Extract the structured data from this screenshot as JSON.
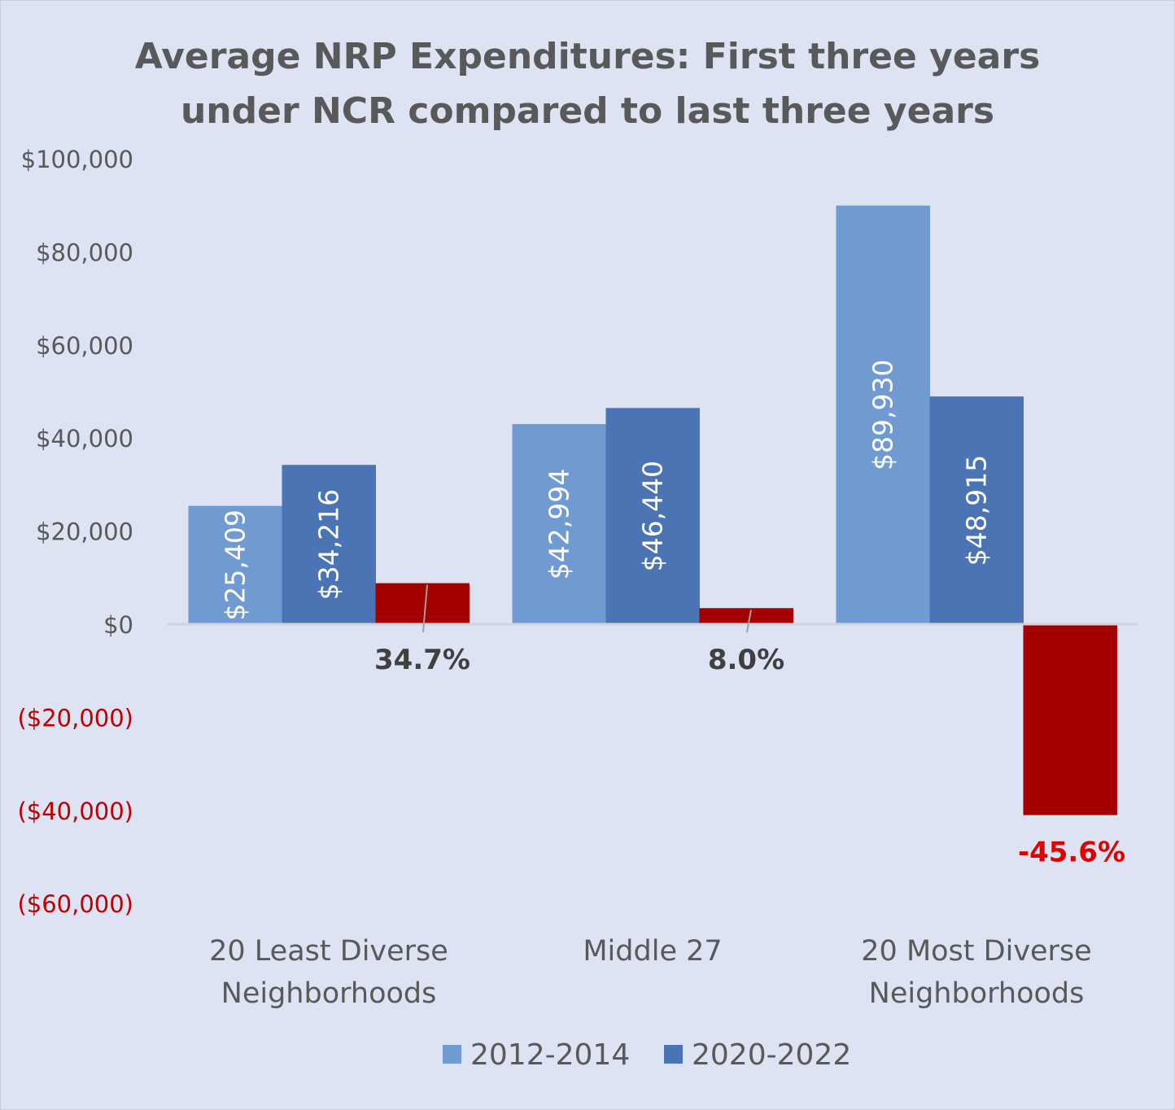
{
  "chart_data": {
    "type": "bar",
    "title": [
      "Average NRP Expenditures: First three years",
      "under NCR compared to last three years"
    ],
    "categories": [
      [
        "20 Least Diverse",
        "Neighborhoods"
      ],
      [
        "Middle 27"
      ],
      [
        "20 Most Diverse",
        "Neighborhoods"
      ]
    ],
    "series": [
      {
        "name": "2012-2014",
        "values": [
          25409,
          42994,
          89930
        ],
        "labels": [
          "$25,409",
          "$42,994",
          "$89,930"
        ],
        "color": "#709bd2"
      },
      {
        "name": "2020-2022",
        "values": [
          34216,
          46440,
          48915
        ],
        "labels": [
          "$34,216",
          "$46,440",
          "$48,915"
        ],
        "color": "#4a74b4"
      },
      {
        "values": [
          8807,
          3446,
          -41015
        ],
        "labels": [
          "34.7%",
          "8.0%",
          "-45.6%"
        ],
        "color": "#a50000"
      }
    ],
    "ylim": [
      -60000,
      100000
    ],
    "yticks": [
      100000,
      80000,
      60000,
      40000,
      20000,
      0,
      -20000,
      -40000,
      -60000
    ],
    "ytick_labels": [
      "$100,000",
      "$80,000",
      "$60,000",
      "$40,000",
      "$20,000",
      "$0",
      "($20,000)",
      "($40,000)",
      "($60,000)"
    ],
    "grid": false,
    "legend": "bottom"
  }
}
